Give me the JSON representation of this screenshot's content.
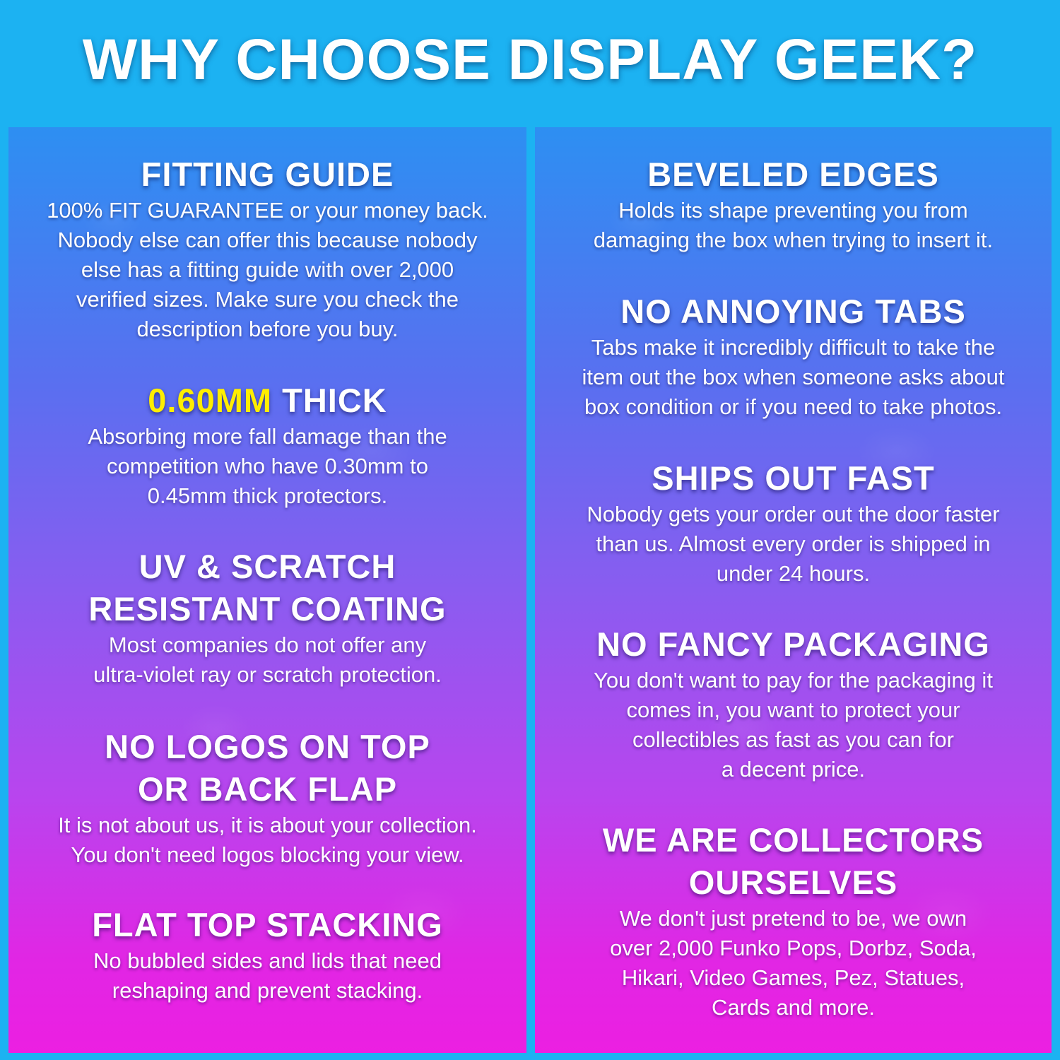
{
  "title": "WHY CHOOSE DISPLAY GEEK?",
  "colors": {
    "background": "#1cb2f2",
    "gradient_top": "#2d8ff2",
    "gradient_bottom": "#ec1fe2",
    "highlight": "#ffee00"
  },
  "left": [
    {
      "heading": [
        "FITTING GUIDE"
      ],
      "body": [
        "100% FIT GUARANTEE or your money back.",
        "Nobody else can offer this because nobody",
        "else has a fitting guide with over 2,000",
        "verified sizes. Make sure you check the",
        "description before you buy."
      ]
    },
    {
      "heading_highlight": "0.60MM",
      "heading_rest": " THICK",
      "body": [
        "Absorbing more fall damage than the",
        "competition who have 0.30mm to",
        "0.45mm thick protectors."
      ]
    },
    {
      "heading": [
        "UV & SCRATCH",
        "RESISTANT COATING"
      ],
      "body": [
        "Most companies do not offer any",
        "ultra-violet ray or scratch protection."
      ]
    },
    {
      "heading": [
        "NO LOGOS ON TOP",
        "OR BACK FLAP"
      ],
      "body": [
        "It is not about us, it is about your collection.",
        "You don't need logos blocking your view."
      ]
    },
    {
      "heading": [
        "FLAT TOP STACKING"
      ],
      "body": [
        "No bubbled sides and lids that need",
        "reshaping and prevent stacking."
      ]
    }
  ],
  "right": [
    {
      "heading": [
        "BEVELED EDGES"
      ],
      "body": [
        "Holds its shape preventing you from",
        "damaging the box when trying to insert it."
      ]
    },
    {
      "heading": [
        "NO ANNOYING TABS"
      ],
      "body": [
        "Tabs make it incredibly difficult to take the",
        "item out the box when someone asks about",
        "box condition or if you need to take photos."
      ]
    },
    {
      "heading": [
        "SHIPS OUT FAST"
      ],
      "body": [
        "Nobody gets your order out the door faster",
        "than us. Almost every order is shipped in",
        "under 24 hours."
      ]
    },
    {
      "heading": [
        "NO FANCY PACKAGING"
      ],
      "body": [
        "You don't want to pay for the packaging it",
        "comes in, you want to protect your",
        "collectibles as fast as you can for",
        "a decent price."
      ]
    },
    {
      "heading": [
        "WE ARE COLLECTORS",
        "OURSELVES"
      ],
      "body": [
        "We don't just pretend to be, we own",
        "over 2,000 Funko Pops, Dorbz, Soda,",
        "Hikari, Video Games, Pez, Statues,",
        "Cards and more."
      ]
    }
  ]
}
